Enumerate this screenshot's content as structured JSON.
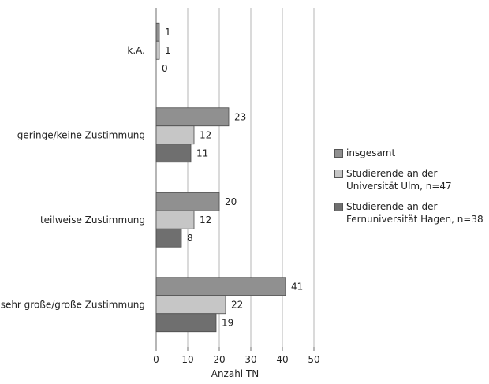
{
  "chart_data": {
    "type": "bar",
    "orientation": "horizontal",
    "categories": [
      "k.A.",
      "geringe/keine Zustimmung",
      "teilweise Zustimmung",
      "sehr große/große Zustimmung"
    ],
    "series": [
      {
        "name": "insgesamt",
        "values": [
          1,
          23,
          20,
          41
        ],
        "color": "#909090"
      },
      {
        "name": "Studierende an der Universität Ulm, n=47",
        "values": [
          1,
          12,
          12,
          22
        ],
        "color": "#c6c6c6"
      },
      {
        "name": "Studierende an der Fernuniversität Hagen, n=38",
        "values": [
          0,
          11,
          8,
          19
        ],
        "color": "#6f6f6f"
      }
    ],
    "xlabel": "Anzahl TN",
    "ylabel": "",
    "title": "",
    "xlim": [
      0,
      50
    ],
    "xticks": [
      0,
      10,
      20,
      30,
      40,
      50
    ],
    "grid": "vertical",
    "legend": "right"
  },
  "legend": {
    "items": [
      {
        "label": "insgesamt",
        "color": "#909090"
      },
      {
        "label": "Studierende an der Universität Ulm, n=47",
        "color": "#c6c6c6"
      },
      {
        "label": "Studierende an der Fernuniversität Hagen, n=38",
        "color": "#6f6f6f"
      }
    ]
  }
}
